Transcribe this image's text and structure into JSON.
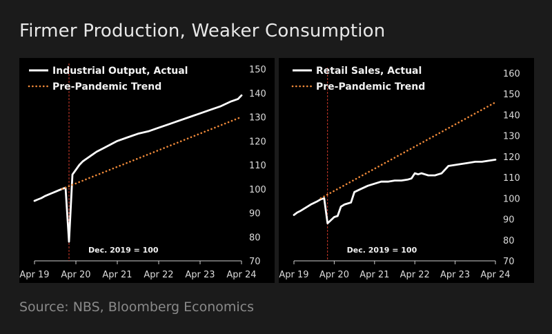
{
  "title": "Firmer Production, Weaker Consumption",
  "source": "Source: NBS, Bloomberg Economics",
  "colors": {
    "actual": "#ffffff",
    "trend": "#f08a3a",
    "vline": "#d23a2a",
    "panel": "#000000",
    "page": "#1b1b1b"
  },
  "chart_data": [
    {
      "type": "line",
      "title": "",
      "xlabel": "",
      "ylabel": "",
      "x_ticks": [
        "Apr 19",
        "Apr 20",
        "Apr 21",
        "Apr 22",
        "Apr 23",
        "Apr 24"
      ],
      "x_range": [
        "2019-04",
        "2024-04"
      ],
      "ylim": [
        70,
        150
      ],
      "y_ticks": [
        70,
        80,
        90,
        100,
        110,
        120,
        130,
        140,
        150
      ],
      "grid": false,
      "legend": "top-left",
      "annotation": "Dec. 2019 = 100",
      "reference_line": "2020-02",
      "series": [
        {
          "name": "Industrial Output, Actual",
          "style": "solid",
          "x": [
            "2019-04",
            "2019-05",
            "2019-06",
            "2019-07",
            "2019-08",
            "2019-09",
            "2019-10",
            "2019-11",
            "2019-12",
            "2020-01",
            "2020-02",
            "2020-03",
            "2020-04",
            "2020-05",
            "2020-06",
            "2020-08",
            "2020-10",
            "2020-12",
            "2021-02",
            "2021-04",
            "2021-07",
            "2021-10",
            "2022-01",
            "2022-04",
            "2022-07",
            "2022-10",
            "2023-01",
            "2023-04",
            "2023-07",
            "2023-10",
            "2024-01",
            "2024-03",
            "2024-04"
          ],
          "y": [
            95,
            95.6,
            96.2,
            97,
            97.6,
            98.2,
            98.8,
            99.4,
            100,
            100.5,
            78,
            106,
            108,
            110,
            111.5,
            113.5,
            115.5,
            117,
            118.5,
            120,
            121.5,
            123,
            124,
            125.5,
            127,
            128.5,
            130,
            131.5,
            133,
            134.5,
            136.5,
            137.5,
            139
          ]
        },
        {
          "name": "Pre-Pandemic Trend",
          "style": "dotted",
          "x": [
            "2019-12",
            "2024-04"
          ],
          "y": [
            100,
            130
          ]
        }
      ]
    },
    {
      "type": "line",
      "title": "",
      "xlabel": "",
      "ylabel": "",
      "x_ticks": [
        "Apr 19",
        "Apr 20",
        "Apr 21",
        "Apr 22",
        "Apr 23",
        "Apr 24"
      ],
      "x_range": [
        "2019-04",
        "2024-04"
      ],
      "ylim": [
        70,
        160
      ],
      "y_ticks": [
        70,
        80,
        90,
        100,
        110,
        120,
        130,
        140,
        150,
        160
      ],
      "grid": false,
      "legend": "top-left",
      "annotation": "Dec. 2019 = 100",
      "reference_line": "2020-02",
      "series": [
        {
          "name": "Retail Sales, Actual",
          "style": "solid",
          "x": [
            "2019-04",
            "2019-05",
            "2019-06",
            "2019-07",
            "2019-08",
            "2019-09",
            "2019-10",
            "2019-11",
            "2019-12",
            "2020-01",
            "2020-02",
            "2020-03",
            "2020-04",
            "2020-05",
            "2020-06",
            "2020-07",
            "2020-08",
            "2020-09",
            "2020-10",
            "2020-12",
            "2021-02",
            "2021-04",
            "2021-06",
            "2021-08",
            "2021-10",
            "2021-12",
            "2022-02",
            "2022-03",
            "2022-04",
            "2022-05",
            "2022-06",
            "2022-08",
            "2022-10",
            "2022-12",
            "2023-02",
            "2023-04",
            "2023-06",
            "2023-08",
            "2023-10",
            "2023-12",
            "2024-02",
            "2024-04"
          ],
          "y": [
            92,
            93.2,
            94,
            95,
            96,
            97,
            97.8,
            98.6,
            99.5,
            100,
            88,
            89.5,
            91,
            91.5,
            96,
            97,
            97.5,
            98,
            103,
            104.5,
            106,
            107,
            108,
            108,
            108.5,
            108.5,
            109,
            109.5,
            112,
            111.5,
            112,
            111,
            111,
            112,
            115.5,
            116,
            116.5,
            117,
            117.5,
            117.5,
            118,
            118.5
          ]
        },
        {
          "name": "Pre-Pandemic Trend",
          "style": "dotted",
          "x": [
            "2019-12",
            "2024-04"
          ],
          "y": [
            100,
            146
          ]
        }
      ]
    }
  ]
}
